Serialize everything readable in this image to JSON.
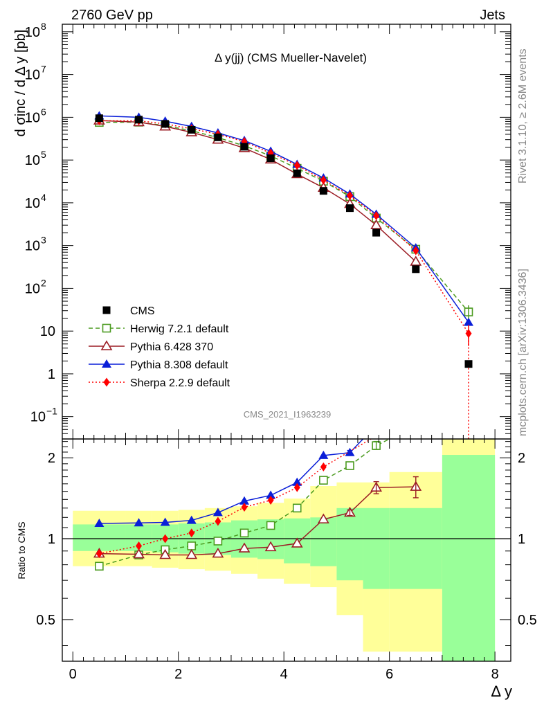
{
  "header": {
    "left": "2760 GeV pp",
    "right": "Jets"
  },
  "side_labels": {
    "top": "Rivet 3.1.10, ≥ 2.6M events",
    "bottom": "mcplots.cern.ch [arXiv:1306.3436]"
  },
  "chart_data": {
    "type": "line",
    "title": "Δ y(jj) (CMS Mueller-Navelet)",
    "watermark": "CMS_2021_I1963239",
    "xlabel": "Δ y",
    "ylabel": "d σinc / d Δ y [pb]",
    "ratio_ylabel": "Ratio to CMS",
    "xlim": [
      -0.2,
      8.3
    ],
    "ylim": [
      0.03,
      150000000.0
    ],
    "yscale": "log",
    "ratio_ylim": [
      0.35,
      2.35
    ],
    "x_ticks": [
      "0",
      "2",
      "4",
      "6",
      "8"
    ],
    "y_ticks": [
      "10^-1",
      "1",
      "10",
      "10^2",
      "10^3",
      "10^4",
      "10^5",
      "10^6",
      "10^7",
      "10^8"
    ],
    "ratio_ticks": [
      "0.5",
      "1",
      "2"
    ],
    "legend_position": "bottom-left",
    "data": {
      "name": "CMS",
      "x": [
        0.5,
        1.25,
        1.75,
        2.25,
        2.75,
        3.25,
        3.75,
        4.25,
        4.75,
        5.25,
        5.75,
        6.5,
        7.5
      ],
      "y": [
        950000,
        880000,
        700000,
        510000,
        340000,
        205000,
        110000,
        49000,
        19000,
        7500,
        2000,
        280,
        1.7
      ]
    },
    "series": [
      {
        "name": "Herwig 7.2.1 default",
        "color": "#4a9a1e",
        "dash": "6,4",
        "marker": "open-square",
        "x": [
          0.5,
          1.25,
          1.75,
          2.25,
          2.75,
          3.25,
          3.75,
          4.25,
          4.75,
          5.25,
          5.75,
          6.5,
          7.5
        ],
        "y": [
          760000,
          770000,
          640000,
          485000,
          335000,
          215000,
          125000,
          64000,
          32000,
          14000,
          4400,
          820,
          28
        ]
      },
      {
        "name": "Pythia 6.428 370",
        "color": "#9b1c24",
        "dash": "",
        "marker": "open-triangle",
        "x": [
          0.5,
          1.25,
          1.75,
          2.25,
          2.75,
          3.25,
          3.75,
          4.25,
          4.75,
          5.25,
          5.75,
          6.5
        ],
        "y": [
          840000,
          770000,
          610000,
          445000,
          300000,
          190000,
          103000,
          47000,
          22500,
          9400,
          3000,
          420
        ]
      },
      {
        "name": "Pythia 8.308 default",
        "color": "#0a1ed8",
        "dash": "",
        "marker": "filled-triangle",
        "x": [
          0.5,
          1.25,
          1.75,
          2.25,
          2.75,
          3.25,
          3.75,
          4.25,
          4.75,
          5.25,
          5.75,
          6.5,
          7.5
        ],
        "y": [
          1080000,
          1000000,
          810000,
          610000,
          430000,
          285000,
          160000,
          79000,
          38000,
          16000,
          5400,
          880,
          16
        ]
      },
      {
        "name": "Sherpa 2.2.9 default",
        "color": "#ff0000",
        "dash": "2,3",
        "marker": "diamond",
        "x": [
          0.5,
          1.25,
          1.75,
          2.25,
          2.75,
          3.25,
          3.75,
          4.25,
          4.75,
          5.25,
          5.75,
          6.5,
          7.5
        ],
        "y": [
          830000,
          830000,
          700000,
          540000,
          400000,
          270000,
          145000,
          75000,
          34000,
          14800,
          5000,
          760,
          8.8
        ]
      }
    ],
    "ratio": {
      "bands": {
        "x_edges": [
          0,
          1,
          1.5,
          2,
          2.5,
          3,
          3.5,
          4,
          4.5,
          5,
          5.5,
          6,
          7,
          8
        ],
        "green_low": [
          0.9,
          0.9,
          0.89,
          0.88,
          0.87,
          0.85,
          0.84,
          0.81,
          0.79,
          0.7,
          0.65,
          0.65,
          0.35
        ],
        "green_high": [
          1.13,
          1.13,
          1.13,
          1.14,
          1.15,
          1.17,
          1.18,
          1.19,
          1.2,
          1.3,
          1.3,
          1.3,
          2.05
        ],
        "yellow_low": [
          0.79,
          0.79,
          0.78,
          0.77,
          0.76,
          0.74,
          0.71,
          0.68,
          0.66,
          0.52,
          0.38,
          0.38,
          0.35
        ],
        "yellow_high": [
          1.27,
          1.27,
          1.27,
          1.28,
          1.3,
          1.32,
          1.36,
          1.41,
          1.57,
          1.62,
          1.62,
          1.77,
          2.35
        ]
      },
      "series": [
        {
          "name": "Herwig 7.2.1 default",
          "x": [
            0.5,
            1.25,
            1.75,
            2.25,
            2.75,
            3.25,
            3.75,
            4.25,
            4.75,
            5.25,
            5.75
          ],
          "y": [
            0.79,
            0.87,
            0.91,
            0.94,
            0.98,
            1.05,
            1.12,
            1.3,
            1.65,
            1.87,
            2.22
          ]
        },
        {
          "name": "Pythia 6.428 370",
          "x": [
            0.5,
            1.25,
            1.75,
            2.25,
            2.75,
            3.25,
            3.75,
            4.25,
            4.75,
            5.25,
            5.75,
            6.5
          ],
          "y": [
            0.88,
            0.875,
            0.87,
            0.87,
            0.88,
            0.92,
            0.93,
            0.96,
            1.18,
            1.25,
            1.55,
            1.56
          ]
        },
        {
          "name": "Pythia 8.308 default",
          "x": [
            0.5,
            1.25,
            1.75,
            2.25,
            2.75,
            3.25,
            3.75,
            4.25,
            4.75,
            5.25
          ],
          "y": [
            1.14,
            1.145,
            1.15,
            1.17,
            1.25,
            1.38,
            1.45,
            1.62,
            2.04,
            2.09
          ]
        },
        {
          "name": "Sherpa 2.2.9 default",
          "x": [
            0.5,
            1.25,
            1.75,
            2.25,
            2.75,
            3.25,
            3.75,
            4.25,
            4.75
          ],
          "y": [
            0.88,
            0.94,
            1.0,
            1.05,
            1.16,
            1.31,
            1.39,
            1.55,
            1.85
          ]
        }
      ]
    }
  }
}
